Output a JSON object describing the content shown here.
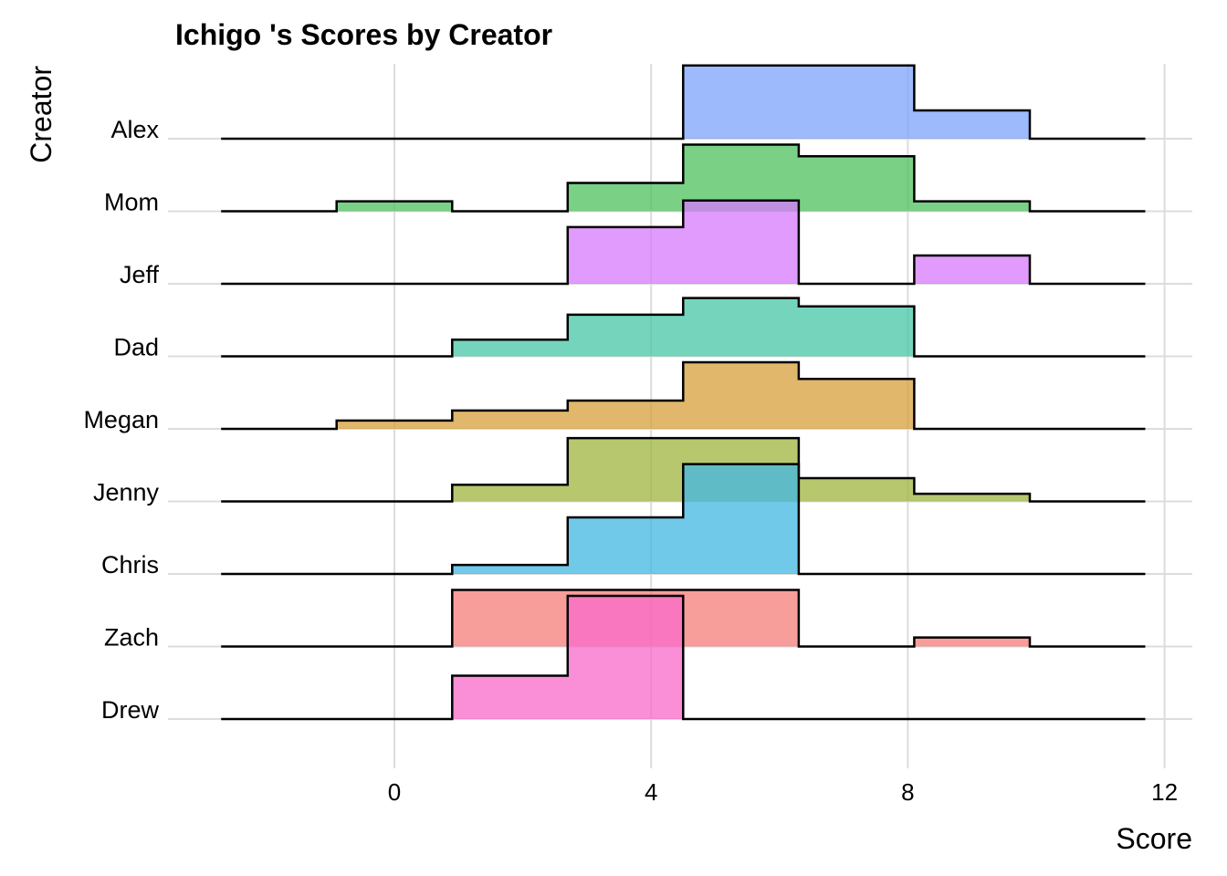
{
  "chart_data": {
    "type": "ridgeline-histogram",
    "title": "Ichigo 's Scores by Creator",
    "xlabel": "Score",
    "ylabel": "Creator",
    "xlim": [
      -2.7,
      12.4
    ],
    "x_ticks": [
      0,
      4,
      8,
      12
    ],
    "grid": true,
    "bin_edges": [
      -2.7,
      -0.9,
      0.9,
      2.7,
      4.5,
      6.3,
      8.1,
      9.9,
      11.7
    ],
    "series": [
      {
        "name": "Alex",
        "color": "#7CA3FB",
        "values": [
          0,
          0,
          0,
          0,
          0.22,
          0.22,
          0.085,
          0
        ]
      },
      {
        "name": "Mom",
        "color": "#4DC25E",
        "values": [
          0,
          0.03,
          0,
          0.085,
          0.2,
          0.165,
          0.03,
          0
        ]
      },
      {
        "name": "Jeff",
        "color": "#D77AFB",
        "values": [
          0,
          0,
          0,
          0.17,
          0.25,
          0,
          0.085,
          0
        ]
      },
      {
        "name": "Dad",
        "color": "#47C6A5",
        "values": [
          0,
          0,
          0.05,
          0.125,
          0.175,
          0.15,
          0,
          0
        ]
      },
      {
        "name": "Megan",
        "color": "#D69F3A",
        "values": [
          0,
          0.025,
          0.055,
          0.085,
          0.2,
          0.15,
          0,
          0
        ]
      },
      {
        "name": "Jenny",
        "color": "#9DB43E",
        "values": [
          0,
          0,
          0.05,
          0.19,
          0.19,
          0.07,
          0.023,
          0
        ]
      },
      {
        "name": "Chris",
        "color": "#41B7E3",
        "values": [
          0,
          0,
          0.027,
          0.17,
          0.33,
          0,
          0,
          0
        ]
      },
      {
        "name": "Zach",
        "color": "#F47E7A",
        "values": [
          0,
          0,
          0.17,
          0.17,
          0.17,
          0,
          0.027,
          0
        ]
      },
      {
        "name": "Drew",
        "color": "#F86ACA",
        "values": [
          0,
          0,
          0.13,
          0.37,
          0,
          0,
          0,
          0
        ]
      }
    ]
  }
}
